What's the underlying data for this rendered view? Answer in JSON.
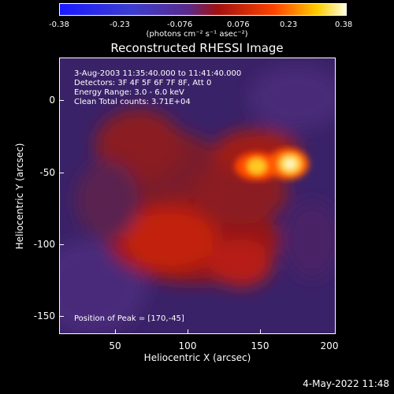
{
  "colorbar": {
    "ticks": [
      "-0.38",
      "-0.23",
      "-0.076",
      "0.076",
      "0.23",
      "0.38"
    ],
    "units": "(photons cm⁻² s⁻¹ asec⁻²)"
  },
  "plot": {
    "title": "Reconstructed RHESSI Image",
    "info_lines": [
      " 3-Aug-2003 11:35:40.000 to 11:41:40.000",
      "Detectors: 3F 4F 5F 6F 7F 8F, Att 0",
      "Energy Range: 3.0 - 6.0 keV",
      "Clean     Total counts: 3.71E+04"
    ],
    "peak_text": "Position of Peak = [170,-45]",
    "xlabel": "Heliocentric X (arcsec)",
    "ylabel": "Heliocentric Y (arcsec)",
    "xticks": [
      "50",
      "100",
      "150",
      "200"
    ],
    "yticks": [
      "0",
      "-50",
      "-100",
      "-150"
    ]
  },
  "timestamp": "4-May-2022 11:48"
}
